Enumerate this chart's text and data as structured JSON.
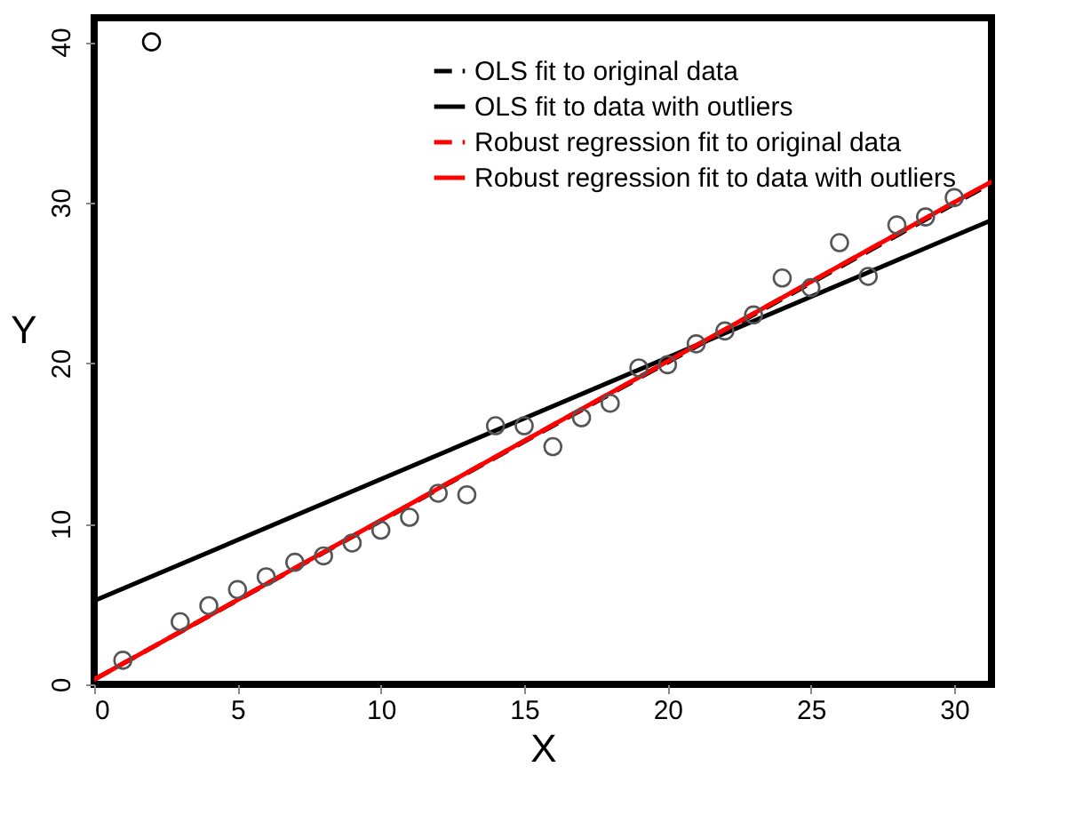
{
  "chart_data": {
    "type": "scatter",
    "xlabel": "X",
    "ylabel": "Y",
    "xlim": [
      0,
      31.3
    ],
    "ylim": [
      0,
      41.5
    ],
    "xticks": [
      0,
      5,
      10,
      15,
      20,
      25,
      30
    ],
    "yticks": [
      0,
      10,
      20,
      30,
      40
    ],
    "grid": false,
    "legend": "top right",
    "series": [
      {
        "type": "line",
        "name": "OLS fit to original data",
        "color": "#000000",
        "line_style": "dashed",
        "x": [
          0,
          31.3
        ],
        "values": [
          0.3,
          31.2
        ]
      },
      {
        "type": "line",
        "name": "OLS fit to data with outliers",
        "color": "#000000",
        "line_style": "solid",
        "x": [
          0,
          31.3
        ],
        "values": [
          5.2,
          28.9
        ]
      },
      {
        "type": "line",
        "name": "Robust regression fit to original data",
        "color": "#ff0000",
        "line_style": "dashed",
        "x": [
          0,
          31.3
        ],
        "values": [
          0.3,
          31.3
        ]
      },
      {
        "type": "line",
        "name": "Robust regression fit to data with outliers",
        "color": "#ff0000",
        "line_style": "solid",
        "x": [
          0,
          31.3
        ],
        "values": [
          0.3,
          31.3
        ]
      },
      {
        "color": "#555555",
        "marker": "circle",
        "x": [
          1,
          3,
          4,
          5,
          6,
          7,
          8,
          9,
          10,
          11,
          12,
          13,
          14,
          15,
          16,
          17,
          18,
          19,
          20,
          21,
          22,
          23,
          24,
          25,
          26,
          27,
          28,
          29,
          30
        ],
        "values": [
          1.5,
          3.9,
          4.9,
          5.9,
          6.7,
          7.6,
          8.0,
          8.8,
          9.6,
          10.4,
          11.9,
          11.8,
          16.1,
          16.1,
          14.8,
          16.6,
          17.5,
          19.7,
          19.9,
          21.2,
          22.0,
          23.0,
          25.3,
          24.7,
          27.5,
          25.4,
          28.6,
          29.1,
          30.3
        ]
      },
      {
        "color": "#000000",
        "marker": "circle",
        "x": [
          2
        ],
        "values": [
          40
        ]
      }
    ]
  }
}
